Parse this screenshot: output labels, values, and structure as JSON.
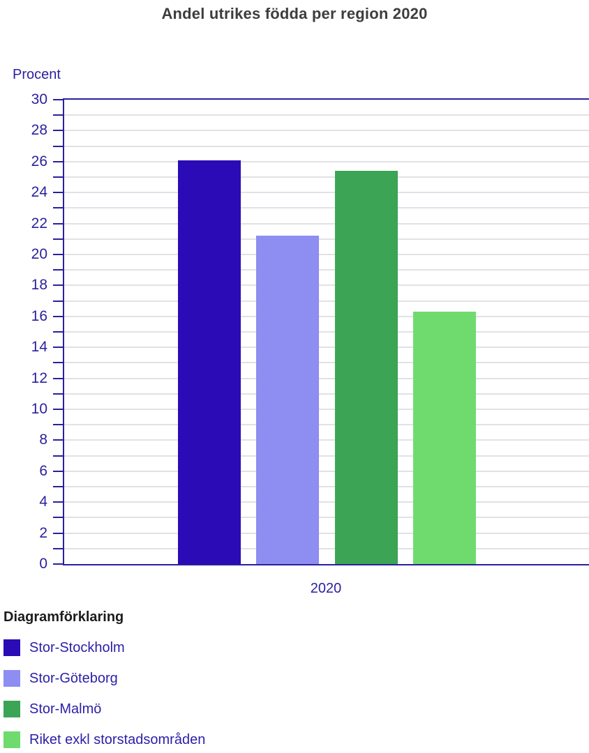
{
  "chart_data": {
    "type": "bar",
    "title": "Andel utrikes födda per region 2020",
    "ylabel": "Procent",
    "xlabel": "",
    "categories": [
      "2020"
    ],
    "series": [
      {
        "name": "Stor-Stockholm",
        "values": [
          26.1
        ],
        "color": "#2B0BB5"
      },
      {
        "name": "Stor-Göteborg",
        "values": [
          21.2
        ],
        "color": "#8D8DF2"
      },
      {
        "name": "Stor-Malmö",
        "values": [
          25.4
        ],
        "color": "#3BA455"
      },
      {
        "name": "Riket exkl storstadsområden",
        "values": [
          16.3
        ],
        "color": "#6FDB6F"
      }
    ],
    "ylim": [
      0,
      30
    ],
    "y_label_step": 2,
    "y_grid_step": 1,
    "grid": true,
    "legend_title": "Diagramförklaring",
    "legend_position": "bottom-left"
  },
  "colors": {
    "axis": "#2A1F9E",
    "axis_text": "#2A1F9E",
    "grid": "#E1E1E7",
    "title_text": "#3D3D3D",
    "legend_title_text": "#1C1C1C",
    "legend_label_text": "#2B1FA8"
  }
}
